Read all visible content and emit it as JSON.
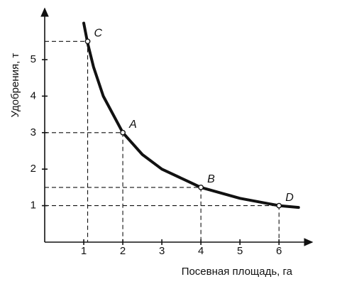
{
  "chart_data": {
    "type": "line",
    "x_label": "Посевная площадь, га",
    "y_label": "Удобрения, т",
    "xlim": [
      0,
      6.85
    ],
    "ylim": [
      0,
      6.4
    ],
    "xticks": [
      1,
      2,
      3,
      4,
      5,
      6
    ],
    "yticks": [
      1,
      2,
      3,
      4,
      5
    ],
    "curve": {
      "color": "#111111",
      "x": [
        1.0,
        1.1,
        1.25,
        1.5,
        2,
        2.5,
        3,
        4,
        5,
        6,
        6.5
      ],
      "y": [
        6.0,
        5.45,
        4.8,
        4.0,
        3.0,
        2.4,
        2.0,
        1.5,
        1.2,
        1.0,
        0.95
      ]
    },
    "points": [
      {
        "label": "C",
        "x": 1.1,
        "y": 5.5
      },
      {
        "label": "A",
        "x": 2,
        "y": 3
      },
      {
        "label": "B",
        "x": 4,
        "y": 1.5
      },
      {
        "label": "D",
        "x": 6,
        "y": 1
      }
    ]
  }
}
